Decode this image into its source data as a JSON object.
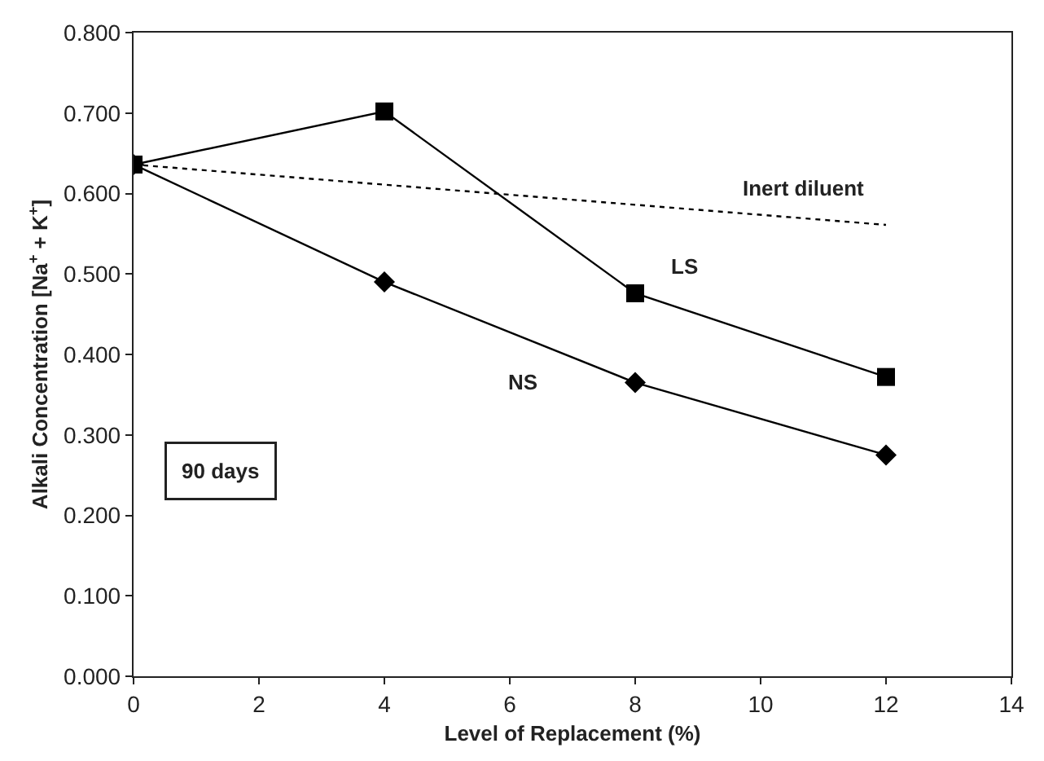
{
  "chart_data": {
    "type": "line",
    "xlabel": "Level of Replacement (%)",
    "ylabel": "Alkali Concentration [Na$^{+}$ + K$^{+}$]",
    "x": [
      0,
      4,
      8,
      12
    ],
    "series": [
      {
        "name": "LS",
        "color": "#000000",
        "values": [
          0.636,
          0.702,
          0.476,
          0.372
        ],
        "marker": "square",
        "line_style": "solid"
      },
      {
        "name": "NS",
        "color": "#000000",
        "values": [
          0.636,
          0.49,
          0.365,
          0.275
        ],
        "marker": "diamond",
        "line_style": "solid"
      },
      {
        "name": "Inert diluent",
        "color": "#000000",
        "x": [
          0,
          12
        ],
        "values": [
          0.636,
          0.561
        ],
        "marker": "none",
        "line_style": "dotted"
      }
    ],
    "annotations": [
      "90 days"
    ],
    "xlim": [
      0,
      14
    ],
    "xticks": [
      0,
      2,
      4,
      6,
      8,
      10,
      12,
      14
    ],
    "ylim": [
      0,
      0.8
    ],
    "yticks": [
      {
        "value": 0,
        "label": "0.000"
      },
      {
        "value": 0.1,
        "label": "0.100"
      },
      {
        "value": 0.2,
        "label": "0.200"
      },
      {
        "value": 0.3,
        "label": "0.300"
      },
      {
        "value": 0.4,
        "label": "0.400"
      },
      {
        "value": 0.5,
        "label": "0.500"
      },
      {
        "value": 0.6,
        "label": "0.600"
      },
      {
        "value": 0.7,
        "label": "0.700"
      },
      {
        "value": 0.8,
        "label": "0.800"
      }
    ],
    "legend": false
  }
}
